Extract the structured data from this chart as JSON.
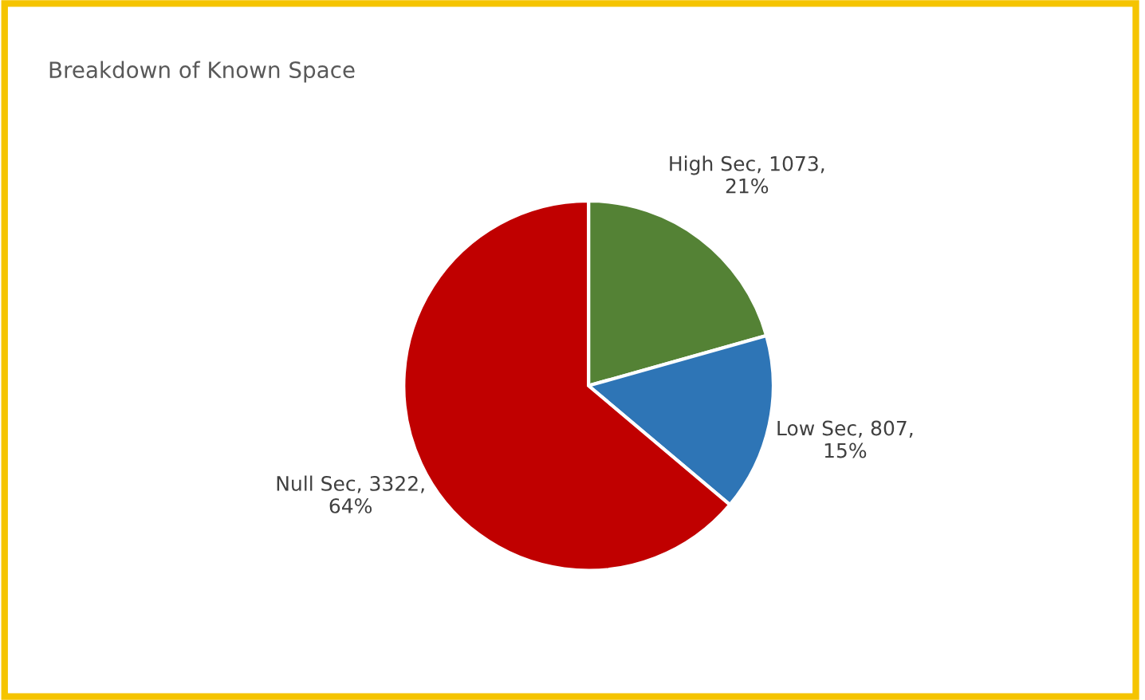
{
  "chart_data": {
    "type": "pie",
    "title": "Breakdown of Known Space",
    "categories": [
      "High Sec",
      "Low Sec",
      "Null Sec"
    ],
    "values": [
      1073,
      807,
      3322
    ],
    "colors": [
      "#548235",
      "#2e75b6",
      "#c00000"
    ],
    "value_labels": [
      "1073,\n21%",
      "807,\n15%",
      "3322,\n64%"
    ],
    "legend": false
  }
}
